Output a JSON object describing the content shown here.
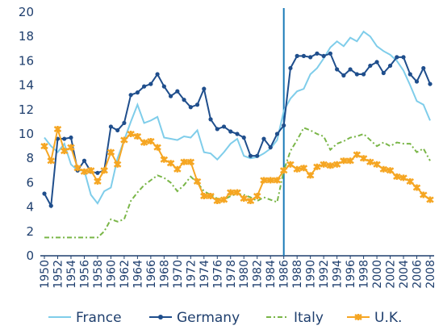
{
  "chart_data": {
    "type": "line",
    "x": [
      1950,
      1951,
      1952,
      1953,
      1954,
      1955,
      1956,
      1957,
      1958,
      1959,
      1960,
      1961,
      1962,
      1963,
      1964,
      1965,
      1966,
      1967,
      1968,
      1969,
      1970,
      1971,
      1972,
      1973,
      1974,
      1975,
      1976,
      1977,
      1978,
      1979,
      1980,
      1981,
      1982,
      1983,
      1984,
      1985,
      1986,
      1987,
      1988,
      1989,
      1990,
      1991,
      1992,
      1993,
      1994,
      1995,
      1996,
      1997,
      1998,
      1999,
      2000,
      2001,
      2002,
      2003,
      2004,
      2005,
      2006,
      2007,
      2008
    ],
    "series": [
      {
        "name": "France",
        "color": "#7fcdea",
        "values": [
          9.7,
          9.0,
          8.5,
          9.2,
          7.5,
          7.0,
          7.0,
          5.0,
          4.3,
          5.3,
          5.6,
          8.0,
          9.5,
          11.0,
          12.4,
          10.9,
          11.1,
          11.4,
          9.7,
          9.6,
          9.5,
          9.8,
          9.7,
          10.3,
          8.5,
          8.4,
          7.9,
          8.5,
          9.2,
          9.6,
          8.2,
          8.0,
          8.1,
          8.4,
          8.8,
          9.5,
          11.9,
          12.9,
          13.5,
          13.7,
          14.9,
          15.4,
          16.2,
          17.1,
          17.6,
          17.2,
          17.9,
          17.6,
          18.4,
          18.0,
          17.2,
          16.8,
          16.5,
          16.0,
          15.2,
          14.0,
          12.7,
          12.4,
          11.1
        ]
      },
      {
        "name": "Germany",
        "color": "#1f4e8c",
        "marker": "circle",
        "values": [
          5.1,
          4.1,
          9.6,
          9.6,
          9.7,
          7.0,
          7.8,
          6.9,
          6.8,
          7.0,
          10.6,
          10.3,
          10.9,
          13.2,
          13.4,
          13.9,
          14.1,
          14.9,
          13.9,
          13.1,
          13.5,
          12.8,
          12.2,
          12.4,
          13.7,
          11.2,
          10.4,
          10.6,
          10.2,
          10.0,
          9.7,
          8.2,
          8.2,
          9.6,
          8.9,
          10.0,
          10.7,
          15.4,
          16.4,
          16.4,
          16.3,
          16.6,
          16.4,
          16.6,
          15.3,
          14.8,
          15.3,
          14.9,
          14.9,
          15.6,
          15.9,
          15.0,
          15.6,
          16.3,
          16.3,
          14.9,
          14.3,
          15.4,
          14.1
        ]
      },
      {
        "name": "Italy",
        "color": "#7ab648",
        "dash": "6 3 2 3",
        "values": [
          1.5,
          1.5,
          1.5,
          1.5,
          1.5,
          1.5,
          1.5,
          1.5,
          1.5,
          2.0,
          3.0,
          2.8,
          3.0,
          4.5,
          5.2,
          5.8,
          6.2,
          6.6,
          6.4,
          6.0,
          5.3,
          5.8,
          6.5,
          6.0,
          5.3,
          5.0,
          4.7,
          4.6,
          4.9,
          5.1,
          5.0,
          4.8,
          4.5,
          4.8,
          4.6,
          4.4,
          7.0,
          8.6,
          9.5,
          10.5,
          10.3,
          10.0,
          9.8,
          8.7,
          9.2,
          9.4,
          9.7,
          9.8,
          10.0,
          9.5,
          9.0,
          9.3,
          9.0,
          9.3,
          9.2,
          9.2,
          8.5,
          8.8,
          7.8
        ]
      },
      {
        "name": "U.K.",
        "color": "#f5a623",
        "marker": "star",
        "values": [
          9.0,
          7.8,
          10.4,
          8.6,
          8.9,
          7.2,
          6.9,
          7.0,
          6.1,
          7.0,
          8.5,
          7.5,
          9.5,
          10.0,
          9.8,
          9.3,
          9.4,
          8.9,
          7.9,
          7.6,
          7.1,
          7.7,
          7.7,
          6.1,
          4.9,
          4.9,
          4.5,
          4.6,
          5.2,
          5.2,
          4.7,
          4.5,
          4.9,
          6.2,
          6.2,
          6.2,
          7.0,
          7.5,
          7.1,
          7.2,
          6.6,
          7.3,
          7.5,
          7.4,
          7.5,
          7.8,
          7.8,
          8.3,
          8.0,
          7.7,
          7.5,
          7.1,
          7.0,
          6.5,
          6.4,
          6.1,
          5.6,
          5.0,
          4.6
        ]
      }
    ],
    "xlim": [
      1950,
      2008
    ],
    "xticks": [
      1950,
      1952,
      1954,
      1956,
      1958,
      1960,
      1962,
      1964,
      1966,
      1968,
      1970,
      1972,
      1974,
      1976,
      1978,
      1980,
      1982,
      1984,
      1986,
      1988,
      1990,
      1992,
      1994,
      1996,
      1998,
      2000,
      2002,
      2004,
      2006,
      2008
    ],
    "ylim": [
      0,
      20
    ],
    "yticks": [
      0,
      2,
      4,
      6,
      8,
      10,
      12,
      14,
      16,
      18,
      20
    ],
    "reference_x": 1986,
    "reference_color": "#1a7ab8",
    "legend": "bottom"
  }
}
